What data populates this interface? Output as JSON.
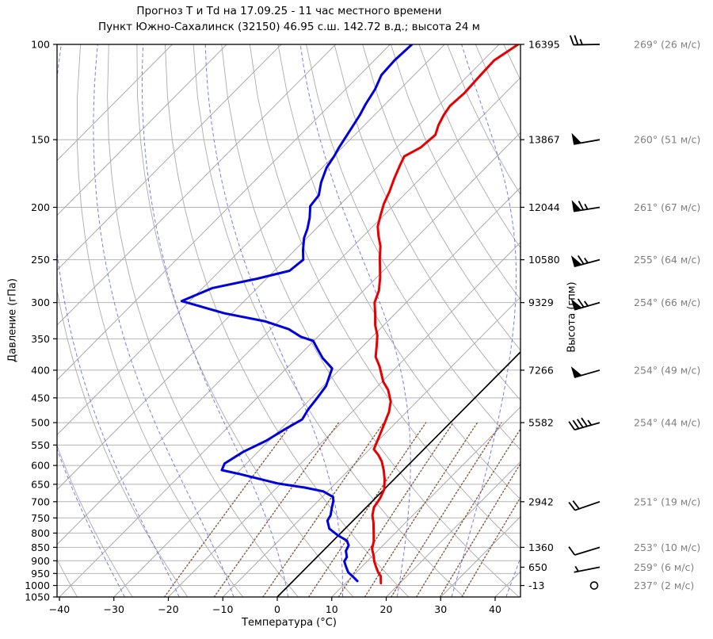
{
  "title": {
    "line1": "Прогноз Т и Td на 17.09.25 - 11 час местного времени",
    "line2": "Пункт Южно-Сахалинск (32150) 46.95 с.ш. 142.72 в.д.; высота 24 м"
  },
  "x_axis": {
    "label": "Температура (°C)",
    "ticks": [
      -40,
      -30,
      -20,
      -10,
      0,
      10,
      20,
      30,
      40
    ],
    "min": -40,
    "max": 44.7
  },
  "y_axis": {
    "label": "Давление (гПа)",
    "scale": "log",
    "min": 100,
    "max": 1050,
    "ticks": [
      100,
      150,
      200,
      250,
      300,
      350,
      400,
      450,
      500,
      550,
      600,
      650,
      700,
      750,
      800,
      850,
      900,
      950,
      1000,
      1050
    ]
  },
  "right_axis": {
    "label": "Высота (гпм)",
    "entries": [
      {
        "pressure": 100,
        "label": "16395"
      },
      {
        "pressure": 150,
        "label": "13867"
      },
      {
        "pressure": 200,
        "label": "12044"
      },
      {
        "pressure": 250,
        "label": "10580"
      },
      {
        "pressure": 300,
        "label": "9329"
      },
      {
        "pressure": 400,
        "label": "7266"
      },
      {
        "pressure": 500,
        "label": "5582"
      },
      {
        "pressure": 700,
        "label": "2942"
      },
      {
        "pressure": 850,
        "label": "1360"
      },
      {
        "pressure": 925,
        "label": "650"
      },
      {
        "pressure": 1000,
        "label": "-13"
      }
    ]
  },
  "wind_column": {
    "rows": [
      {
        "pressure": 100,
        "dir_deg": 269,
        "speed_ms": 26,
        "label": "269° (26 м/с)"
      },
      {
        "pressure": 150,
        "dir_deg": 260,
        "speed_ms": 51,
        "label": "260° (51 м/с)"
      },
      {
        "pressure": 200,
        "dir_deg": 261,
        "speed_ms": 67,
        "label": "261° (67 м/с)"
      },
      {
        "pressure": 250,
        "dir_deg": 255,
        "speed_ms": 64,
        "label": "255° (64 м/с)"
      },
      {
        "pressure": 300,
        "dir_deg": 254,
        "speed_ms": 66,
        "label": "254° (66 м/с)"
      },
      {
        "pressure": 400,
        "dir_deg": 254,
        "speed_ms": 49,
        "label": "254° (49 м/с)"
      },
      {
        "pressure": 500,
        "dir_deg": 254,
        "speed_ms": 44,
        "label": "254° (44 м/с)"
      },
      {
        "pressure": 700,
        "dir_deg": 251,
        "speed_ms": 19,
        "label": "251° (19 м/с)"
      },
      {
        "pressure": 850,
        "dir_deg": 253,
        "speed_ms": 10,
        "label": "253° (10 м/с)"
      },
      {
        "pressure": 925,
        "dir_deg": 259,
        "speed_ms": 6,
        "label": "259° (6 м/с)"
      },
      {
        "pressure": 1000,
        "dir_deg": 237,
        "speed_ms": 2,
        "label": "237° (2 м/с)"
      }
    ]
  },
  "chart_data": {
    "type": "line",
    "projection": "skew-t-log-p",
    "skew_deg": 45,
    "xlabel": "Температура (°C)",
    "ylabel_left": "Давление (гПа)",
    "ylabel_right": "Высота (гпм)",
    "x_range": [
      -40,
      44.7
    ],
    "p_range": [
      100,
      1050
    ],
    "series": [
      {
        "name": "T (температура)",
        "color": "#e80000",
        "width": 3,
        "points": [
          [
            100,
            -56.5
          ],
          [
            107,
            -58.0
          ],
          [
            114,
            -57.8
          ],
          [
            123,
            -57.5
          ],
          [
            130,
            -57.8
          ],
          [
            135,
            -57.3
          ],
          [
            141,
            -56.4
          ],
          [
            147,
            -55.2
          ],
          [
            155,
            -55.6
          ],
          [
            161,
            -57.0
          ],
          [
            167,
            -56.2
          ],
          [
            177,
            -54.8
          ],
          [
            187,
            -53.3
          ],
          [
            197,
            -52.1
          ],
          [
            207,
            -50.6
          ],
          [
            217,
            -49.1
          ],
          [
            226,
            -47.2
          ],
          [
            236,
            -45.0
          ],
          [
            248,
            -43.0
          ],
          [
            256,
            -41.6
          ],
          [
            270,
            -39.3
          ],
          [
            285,
            -37.2
          ],
          [
            300,
            -35.8
          ],
          [
            315,
            -33.6
          ],
          [
            330,
            -31.6
          ],
          [
            345,
            -29.3
          ],
          [
            360,
            -27.6
          ],
          [
            378,
            -25.7
          ],
          [
            394,
            -23.2
          ],
          [
            420,
            -19.8
          ],
          [
            435,
            -17.4
          ],
          [
            457,
            -14.8
          ],
          [
            478,
            -13.2
          ],
          [
            495,
            -12.3
          ],
          [
            525,
            -10.8
          ],
          [
            551,
            -9.6
          ],
          [
            560,
            -9.2
          ],
          [
            574,
            -7.3
          ],
          [
            590,
            -5.5
          ],
          [
            613,
            -3.5
          ],
          [
            637,
            -1.7
          ],
          [
            664,
            0.0
          ],
          [
            690,
            0.9
          ],
          [
            717,
            1.4
          ],
          [
            742,
            2.6
          ],
          [
            765,
            4.1
          ],
          [
            801,
            6.1
          ],
          [
            829,
            7.6
          ],
          [
            855,
            8.6
          ],
          [
            883,
            10.3
          ],
          [
            902,
            11.3
          ],
          [
            923,
            12.6
          ],
          [
            945,
            14.0
          ],
          [
            961,
            15.2
          ],
          [
            990,
            16.5
          ]
        ]
      },
      {
        "name": "Td (точка росы)",
        "color": "#0000dd",
        "width": 3,
        "points": [
          [
            100,
            -76.0
          ],
          [
            107,
            -76.3
          ],
          [
            114,
            -76.0
          ],
          [
            121,
            -74.6
          ],
          [
            129,
            -73.6
          ],
          [
            135,
            -72.7
          ],
          [
            144,
            -71.7
          ],
          [
            155,
            -70.6
          ],
          [
            161,
            -69.9
          ],
          [
            169,
            -69.2
          ],
          [
            180,
            -67.5
          ],
          [
            190,
            -65.6
          ],
          [
            199,
            -65.2
          ],
          [
            209,
            -63.2
          ],
          [
            219,
            -61.6
          ],
          [
            228,
            -60.5
          ],
          [
            240,
            -58.5
          ],
          [
            250,
            -56.7
          ],
          [
            262,
            -57.2
          ],
          [
            271,
            -61.7
          ],
          [
            282,
            -68.2
          ],
          [
            298,
            -71.5
          ],
          [
            314,
            -61.4
          ],
          [
            325,
            -52.4
          ],
          [
            336,
            -46.7
          ],
          [
            347,
            -43.1
          ],
          [
            353,
            -40.1
          ],
          [
            365,
            -37.9
          ],
          [
            380,
            -35.2
          ],
          [
            397,
            -31.6
          ],
          [
            428,
            -29.5
          ],
          [
            452,
            -28.9
          ],
          [
            473,
            -28.5
          ],
          [
            493,
            -27.8
          ],
          [
            515,
            -29.2
          ],
          [
            540,
            -30.5
          ],
          [
            566,
            -32.7
          ],
          [
            595,
            -34.0
          ],
          [
            612,
            -33.3
          ],
          [
            622,
            -29.4
          ],
          [
            648,
            -20.5
          ],
          [
            659,
            -15.0
          ],
          [
            670,
            -10.8
          ],
          [
            686,
            -8.0
          ],
          [
            698,
            -7.2
          ],
          [
            717,
            -6.3
          ],
          [
            742,
            -5.1
          ],
          [
            759,
            -4.7
          ],
          [
            785,
            -2.9
          ],
          [
            807,
            -0.2
          ],
          [
            826,
            2.5
          ],
          [
            843,
            3.7
          ],
          [
            863,
            4.2
          ],
          [
            886,
            5.5
          ],
          [
            902,
            5.8
          ],
          [
            923,
            7.1
          ],
          [
            945,
            8.5
          ],
          [
            961,
            10.0
          ],
          [
            981,
            11.8
          ]
        ]
      }
    ],
    "background": {
      "isotherm_step": 10,
      "isotherm_color": "#ababab",
      "zero_isotherm_color": "#000000",
      "pressure_grid_color": "#b4b4b4",
      "dry_adiabat_color": "#ababab",
      "dry_adiabat_theta_step": 10,
      "moist_adiabat_color": "#7b7bee",
      "moist_adiabat_surface_temps": [
        -28,
        -18,
        -8,
        2,
        12,
        22,
        32,
        42
      ],
      "mixing_ratio_color": "#8b5a3b",
      "mixing_ratio_values_gkg": [
        0.7,
        1.5,
        3,
        5.5,
        8,
        11,
        15,
        20,
        26,
        33
      ]
    }
  },
  "style": {
    "wind_text_color": "#7f7f7f",
    "barb_color": "#000000",
    "axis_color": "#000000"
  }
}
